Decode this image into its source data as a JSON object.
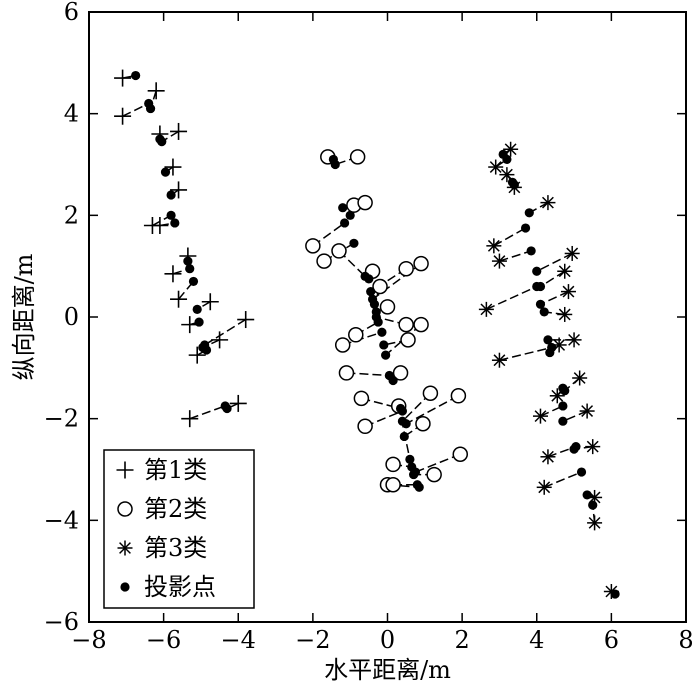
{
  "chart_data": {
    "type": "scatter",
    "xlabel": "水平距离/m",
    "ylabel": "纵向距离/m",
    "xlim": [
      -8,
      8
    ],
    "ylim": [
      -6,
      6
    ],
    "xticks": [
      -8,
      -6,
      -4,
      -2,
      0,
      2,
      4,
      6,
      8
    ],
    "yticks": [
      -6,
      -4,
      -2,
      0,
      2,
      4,
      6
    ],
    "xtick_labels": [
      "−8",
      "−6",
      "−4",
      "−2",
      "0",
      "2",
      "4",
      "6",
      "8"
    ],
    "ytick_labels": [
      "−6",
      "−4",
      "−2",
      "0",
      "2",
      "4",
      "6"
    ],
    "grid": false,
    "legend_position": "bottom-left",
    "legend": [
      {
        "label": "第1类",
        "marker": "plus"
      },
      {
        "label": "第2类",
        "marker": "circle"
      },
      {
        "label": "第3类",
        "marker": "asterisk"
      },
      {
        "label": "投影点",
        "marker": "dot"
      }
    ],
    "series": [
      {
        "name": "第1类",
        "marker": "plus",
        "points": [
          {
            "x": -7.1,
            "y": 4.7,
            "px": -6.75,
            "py": 4.75
          },
          {
            "x": -7.1,
            "y": 3.95,
            "px": -6.4,
            "py": 4.2
          },
          {
            "x": -6.2,
            "y": 4.45,
            "px": -6.35,
            "py": 4.1
          },
          {
            "x": -6.1,
            "y": 3.6,
            "px": -6.1,
            "py": 3.5
          },
          {
            "x": -5.6,
            "y": 3.65,
            "px": -6.05,
            "py": 3.45
          },
          {
            "x": -5.75,
            "y": 2.95,
            "px": -5.95,
            "py": 2.85
          },
          {
            "x": -5.6,
            "y": 2.5,
            "px": -5.8,
            "py": 2.4
          },
          {
            "x": -6.3,
            "y": 1.8,
            "px": -5.8,
            "py": 2.0
          },
          {
            "x": -6.1,
            "y": 1.8,
            "px": -5.7,
            "py": 1.85
          },
          {
            "x": -5.35,
            "y": 1.2,
            "px": -5.35,
            "py": 1.1
          },
          {
            "x": -5.75,
            "y": 0.85,
            "px": -5.3,
            "py": 0.95
          },
          {
            "x": -5.6,
            "y": 0.35,
            "px": -5.2,
            "py": 0.7
          },
          {
            "x": -4.75,
            "y": 0.3,
            "px": -5.1,
            "py": 0.15
          },
          {
            "x": -5.3,
            "y": -0.15,
            "px": -5.05,
            "py": -0.1
          },
          {
            "x": -3.8,
            "y": -0.05,
            "px": -4.9,
            "py": -0.55
          },
          {
            "x": -4.5,
            "y": -0.45,
            "px": -4.95,
            "py": -0.6
          },
          {
            "x": -5.1,
            "y": -0.75,
            "px": -4.85,
            "py": -0.65
          },
          {
            "x": -5.3,
            "y": -2.0,
            "px": -4.35,
            "py": -1.75
          },
          {
            "x": -4.0,
            "y": -1.7,
            "px": -4.3,
            "py": -1.8
          }
        ]
      },
      {
        "name": "第2类",
        "marker": "circle",
        "points": [
          {
            "x": -1.6,
            "y": 3.15,
            "px": -1.45,
            "py": 3.1
          },
          {
            "x": -0.8,
            "y": 3.15,
            "px": -1.4,
            "py": 3.0
          },
          {
            "x": -0.9,
            "y": 2.2,
            "px": -1.2,
            "py": 2.15
          },
          {
            "x": -0.6,
            "y": 2.25,
            "px": -1.0,
            "py": 2.0
          },
          {
            "x": -2.0,
            "y": 1.4,
            "px": -1.15,
            "py": 1.85
          },
          {
            "x": -1.7,
            "y": 1.1,
            "px": -0.9,
            "py": 1.45
          },
          {
            "x": -1.3,
            "y": 1.3,
            "px": -0.6,
            "py": 0.8
          },
          {
            "x": -0.4,
            "y": 0.9,
            "px": -0.5,
            "py": 0.75
          },
          {
            "x": 0.5,
            "y": 0.95,
            "px": -0.45,
            "py": 0.5
          },
          {
            "x": 0.9,
            "y": 1.05,
            "px": -0.4,
            "py": 0.35
          },
          {
            "x": -0.2,
            "y": 0.6,
            "px": -0.35,
            "py": 0.25
          },
          {
            "x": 0.0,
            "y": 0.2,
            "px": -0.3,
            "py": 0.1
          },
          {
            "x": 0.5,
            "y": -0.15,
            "px": -0.3,
            "py": 0.0
          },
          {
            "x": -0.85,
            "y": -0.35,
            "px": -0.25,
            "py": -0.1
          },
          {
            "x": -1.2,
            "y": -0.55,
            "px": -0.15,
            "py": -0.3
          },
          {
            "x": 0.55,
            "y": -0.45,
            "px": -0.1,
            "py": -0.55
          },
          {
            "x": 0.9,
            "y": -0.15,
            "px": -0.05,
            "py": -0.75
          },
          {
            "x": -1.1,
            "y": -1.1,
            "px": 0.05,
            "py": -1.15
          },
          {
            "x": 0.35,
            "y": -1.1,
            "px": 0.15,
            "py": -1.25
          },
          {
            "x": -0.7,
            "y": -1.6,
            "px": 0.35,
            "py": -1.8
          },
          {
            "x": -0.6,
            "y": -2.15,
            "px": 0.4,
            "py": -1.85
          },
          {
            "x": 1.15,
            "y": -1.5,
            "px": 0.4,
            "py": -2.05
          },
          {
            "x": 1.9,
            "y": -1.55,
            "px": 0.5,
            "py": -2.1
          },
          {
            "x": 0.95,
            "y": -2.1,
            "px": 0.45,
            "py": -2.35
          },
          {
            "x": 0.3,
            "y": -1.75,
            "px": 0.6,
            "py": -2.8
          },
          {
            "x": 0.15,
            "y": -2.9,
            "px": 0.65,
            "py": -2.95
          },
          {
            "x": 1.95,
            "y": -2.7,
            "px": 0.75,
            "py": -3.05
          },
          {
            "x": 1.25,
            "y": -3.1,
            "px": 0.7,
            "py": -3.1
          },
          {
            "x": 0.0,
            "y": -3.3,
            "px": 0.85,
            "py": -3.35
          },
          {
            "x": 0.15,
            "y": -3.3,
            "px": 0.8,
            "py": -3.3
          }
        ]
      },
      {
        "name": "第3类",
        "marker": "asterisk",
        "points": [
          {
            "x": 3.3,
            "y": 3.3,
            "px": 3.1,
            "py": 3.2
          },
          {
            "x": 2.9,
            "y": 2.95,
            "px": 3.2,
            "py": 3.1
          },
          {
            "x": 3.2,
            "y": 2.8,
            "px": 3.35,
            "py": 2.65
          },
          {
            "x": 3.4,
            "y": 2.55,
            "px": 3.4,
            "py": 2.6
          },
          {
            "x": 4.3,
            "y": 2.25,
            "px": 3.8,
            "py": 2.05
          },
          {
            "x": 2.85,
            "y": 1.4,
            "px": 3.7,
            "py": 1.75
          },
          {
            "x": 3.0,
            "y": 1.1,
            "px": 3.85,
            "py": 1.3
          },
          {
            "x": 4.95,
            "y": 1.25,
            "px": 4.0,
            "py": 0.9
          },
          {
            "x": 4.75,
            "y": 0.9,
            "px": 4.1,
            "py": 0.6
          },
          {
            "x": 2.65,
            "y": 0.15,
            "px": 4.0,
            "py": 0.6
          },
          {
            "x": 4.85,
            "y": 0.5,
            "px": 4.1,
            "py": 0.25
          },
          {
            "x": 4.75,
            "y": 0.05,
            "px": 4.2,
            "py": 0.1
          },
          {
            "x": 5.0,
            "y": -0.45,
            "px": 4.3,
            "py": -0.45
          },
          {
            "x": 4.6,
            "y": -0.55,
            "px": 4.35,
            "py": -0.7
          },
          {
            "x": 3.0,
            "y": -0.85,
            "px": 4.4,
            "py": -0.6
          },
          {
            "x": 5.15,
            "y": -1.2,
            "px": 4.75,
            "py": -1.45
          },
          {
            "x": 4.55,
            "y": -1.55,
            "px": 4.7,
            "py": -1.4
          },
          {
            "x": 4.1,
            "y": -1.95,
            "px": 4.7,
            "py": -1.75
          },
          {
            "x": 5.35,
            "y": -1.85,
            "px": 4.7,
            "py": -2.05
          },
          {
            "x": 5.5,
            "y": -2.55,
            "px": 5.0,
            "py": -2.6
          },
          {
            "x": 4.3,
            "y": -2.75,
            "px": 5.05,
            "py": -2.55
          },
          {
            "x": 4.2,
            "y": -3.35,
            "px": 5.2,
            "py": -3.05
          },
          {
            "x": 5.55,
            "y": -3.55,
            "px": 5.35,
            "py": -3.5
          },
          {
            "x": 5.55,
            "y": -4.05,
            "px": 5.5,
            "py": -3.7
          },
          {
            "x": 6.0,
            "y": -5.4,
            "px": 6.1,
            "py": -5.45
          }
        ]
      }
    ]
  }
}
